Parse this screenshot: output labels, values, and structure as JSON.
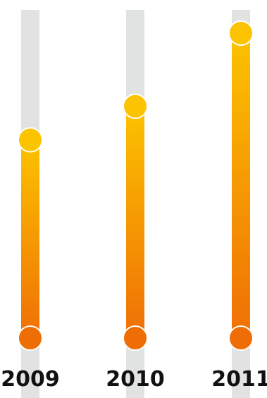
{
  "chart_data": {
    "type": "bar",
    "categories": [
      "2009",
      "2010",
      "2011"
    ],
    "values": [
      0.65,
      0.76,
      1.0
    ],
    "ylim": [
      0,
      1
    ],
    "grid": false,
    "legend": "none"
  },
  "colors": {
    "track": "#e1e2e2",
    "bar_top": "#fcc300",
    "bar_bottom": "#ef6f06",
    "dot_top": "#fcc300",
    "dot_bottom": "#ee6e05",
    "dot_stroke": "#ffffff"
  }
}
